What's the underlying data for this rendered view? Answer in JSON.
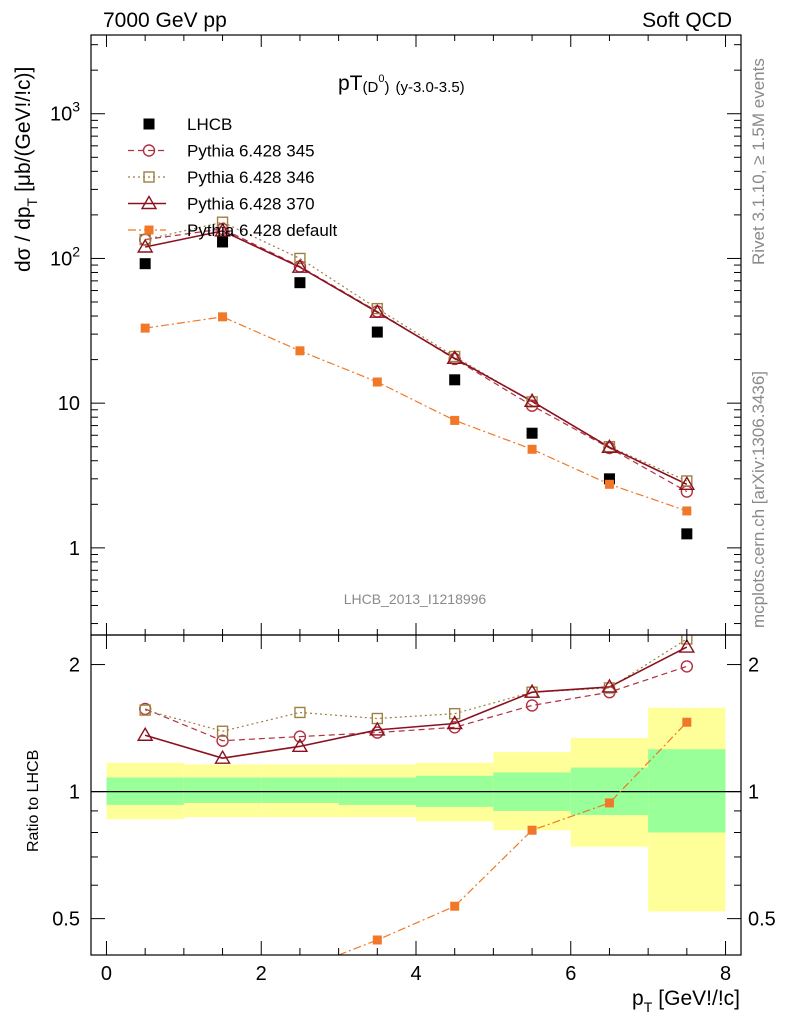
{
  "header": {
    "left": "7000 GeV pp",
    "right": "Soft QCD"
  },
  "side_labels": {
    "top": "Rivet 3.1.10, ≥ 1.5M events",
    "bottom": "mcplots.cern.ch [arXiv:1306.3436]"
  },
  "analysis_id": "LHCB_2013_I1218996",
  "chart_data": [
    {
      "type": "scatter",
      "panel": "main",
      "title_main": "pT",
      "title_sup": "(D",
      "title_sup0": "0",
      "title_sup_close": ")",
      "title_sub": "(y-3.0-3.5)",
      "ylabel": "dσ / dp",
      "ylabel_sub": "T",
      "ylabel_units": "[μb/(GeV!/!c)]",
      "yscale": "log",
      "ylim": [
        0.25,
        3500
      ],
      "xlim": [
        -0.2,
        8.2
      ],
      "y_ticks": [
        "1",
        "10",
        "10",
        "10"
      ],
      "y_tick_exp": [
        "",
        "",
        "2",
        "3"
      ],
      "grid": false,
      "legend_position": "top-left",
      "series": [
        {
          "name": "LHCB",
          "color": "#000000",
          "marker": "filled-square",
          "line": "none",
          "x": [
            0.5,
            1.5,
            2.5,
            3.5,
            4.5,
            5.5,
            6.5,
            7.5
          ],
          "y": [
            92,
            130,
            68,
            31,
            14.5,
            6.2,
            3.0,
            1.25
          ]
        },
        {
          "name": "Pythia 6.428 345",
          "color": "#b03040",
          "marker": "open-circle",
          "line": "dashed",
          "x": [
            0.5,
            1.5,
            2.5,
            3.5,
            4.5,
            5.5,
            6.5,
            7.5
          ],
          "y": [
            135,
            160,
            88,
            43,
            20.2,
            9.6,
            4.9,
            2.45
          ]
        },
        {
          "name": "Pythia 6.428 346",
          "color": "#a08040",
          "marker": "open-square",
          "line": "dotted",
          "x": [
            0.5,
            1.5,
            2.5,
            3.5,
            4.5,
            5.5,
            6.5,
            7.5
          ],
          "y": [
            135,
            178,
            100,
            45,
            21,
            10.2,
            5.0,
            2.9
          ]
        },
        {
          "name": "Pythia 6.428 370",
          "color": "#8b1020",
          "marker": "open-triangle",
          "line": "solid",
          "x": [
            0.5,
            1.5,
            2.5,
            3.5,
            4.5,
            5.5,
            6.5,
            7.5
          ],
          "y": [
            120,
            155,
            87,
            42.5,
            20.4,
            10.3,
            4.95,
            2.75
          ]
        },
        {
          "name": "Pythia 6.428 default",
          "color": "#f07828",
          "marker": "filled-square-small",
          "line": "dashdot",
          "x": [
            0.5,
            1.5,
            2.5,
            3.5,
            4.5,
            5.5,
            6.5,
            7.5
          ],
          "y": [
            33,
            39.5,
            23,
            14,
            7.6,
            4.8,
            2.75,
            1.8
          ]
        }
      ]
    },
    {
      "type": "line",
      "panel": "ratio",
      "ylabel": "Ratio to LHCB",
      "xlabel": "p",
      "xlabel_sub": "T",
      "xlabel_units": "[GeV!/!c]",
      "yscale": "log",
      "ylim": [
        0.41,
        2.35
      ],
      "xlim": [
        -0.2,
        8.2
      ],
      "x_ticks": [
        "0",
        "2",
        "4",
        "6",
        "8"
      ],
      "y_ticks": [
        "0.5",
        "1",
        "2"
      ],
      "reference_line": 1,
      "bands": {
        "inner_color": "#99ff99",
        "outer_color": "#ffff99",
        "bins": [
          [
            0,
            1
          ],
          [
            1,
            2
          ],
          [
            2,
            3
          ],
          [
            3,
            4
          ],
          [
            4,
            5
          ],
          [
            5,
            6
          ],
          [
            6,
            7
          ],
          [
            7,
            8
          ]
        ],
        "inner": [
          [
            0.93,
            1.08
          ],
          [
            0.94,
            1.08
          ],
          [
            0.94,
            1.08
          ],
          [
            0.93,
            1.08
          ],
          [
            0.92,
            1.09
          ],
          [
            0.9,
            1.11
          ],
          [
            0.88,
            1.14
          ],
          [
            0.8,
            1.26
          ]
        ],
        "outer": [
          [
            0.86,
            1.17
          ],
          [
            0.87,
            1.16
          ],
          [
            0.87,
            1.16
          ],
          [
            0.87,
            1.16
          ],
          [
            0.85,
            1.17
          ],
          [
            0.81,
            1.24
          ],
          [
            0.74,
            1.34
          ],
          [
            0.52,
            1.58
          ]
        ]
      },
      "series": [
        {
          "name": "Pythia 6.428 345",
          "color": "#b03040",
          "marker": "open-circle",
          "line": "dashed",
          "x": [
            0.5,
            1.5,
            2.5,
            3.5,
            4.5,
            5.5,
            6.5,
            7.5
          ],
          "y": [
            1.57,
            1.32,
            1.35,
            1.38,
            1.42,
            1.6,
            1.72,
            1.98
          ]
        },
        {
          "name": "Pythia 6.428 346",
          "color": "#a08040",
          "marker": "open-square",
          "line": "dotted",
          "x": [
            0.5,
            1.5,
            2.5,
            3.5,
            4.5,
            5.5,
            6.5,
            7.5
          ],
          "y": [
            1.56,
            1.39,
            1.54,
            1.49,
            1.53,
            1.72,
            1.76,
            2.3
          ]
        },
        {
          "name": "Pythia 6.428 370",
          "color": "#8b1020",
          "marker": "open-triangle",
          "line": "solid",
          "x": [
            0.5,
            1.5,
            2.5,
            3.5,
            4.5,
            5.5,
            6.5,
            7.5
          ],
          "y": [
            1.36,
            1.2,
            1.28,
            1.4,
            1.45,
            1.72,
            1.77,
            2.2
          ]
        },
        {
          "name": "Pythia 6.428 default",
          "color": "#f07828",
          "marker": "filled-square-small",
          "line": "dashdot",
          "x": [
            3.5,
            4.5,
            5.5,
            6.5,
            7.5
          ],
          "y": [
            0.445,
            0.535,
            0.81,
            0.94,
            1.46
          ],
          "extends_below": {
            "x": 3.0,
            "y": 0.41
          }
        }
      ]
    }
  ]
}
